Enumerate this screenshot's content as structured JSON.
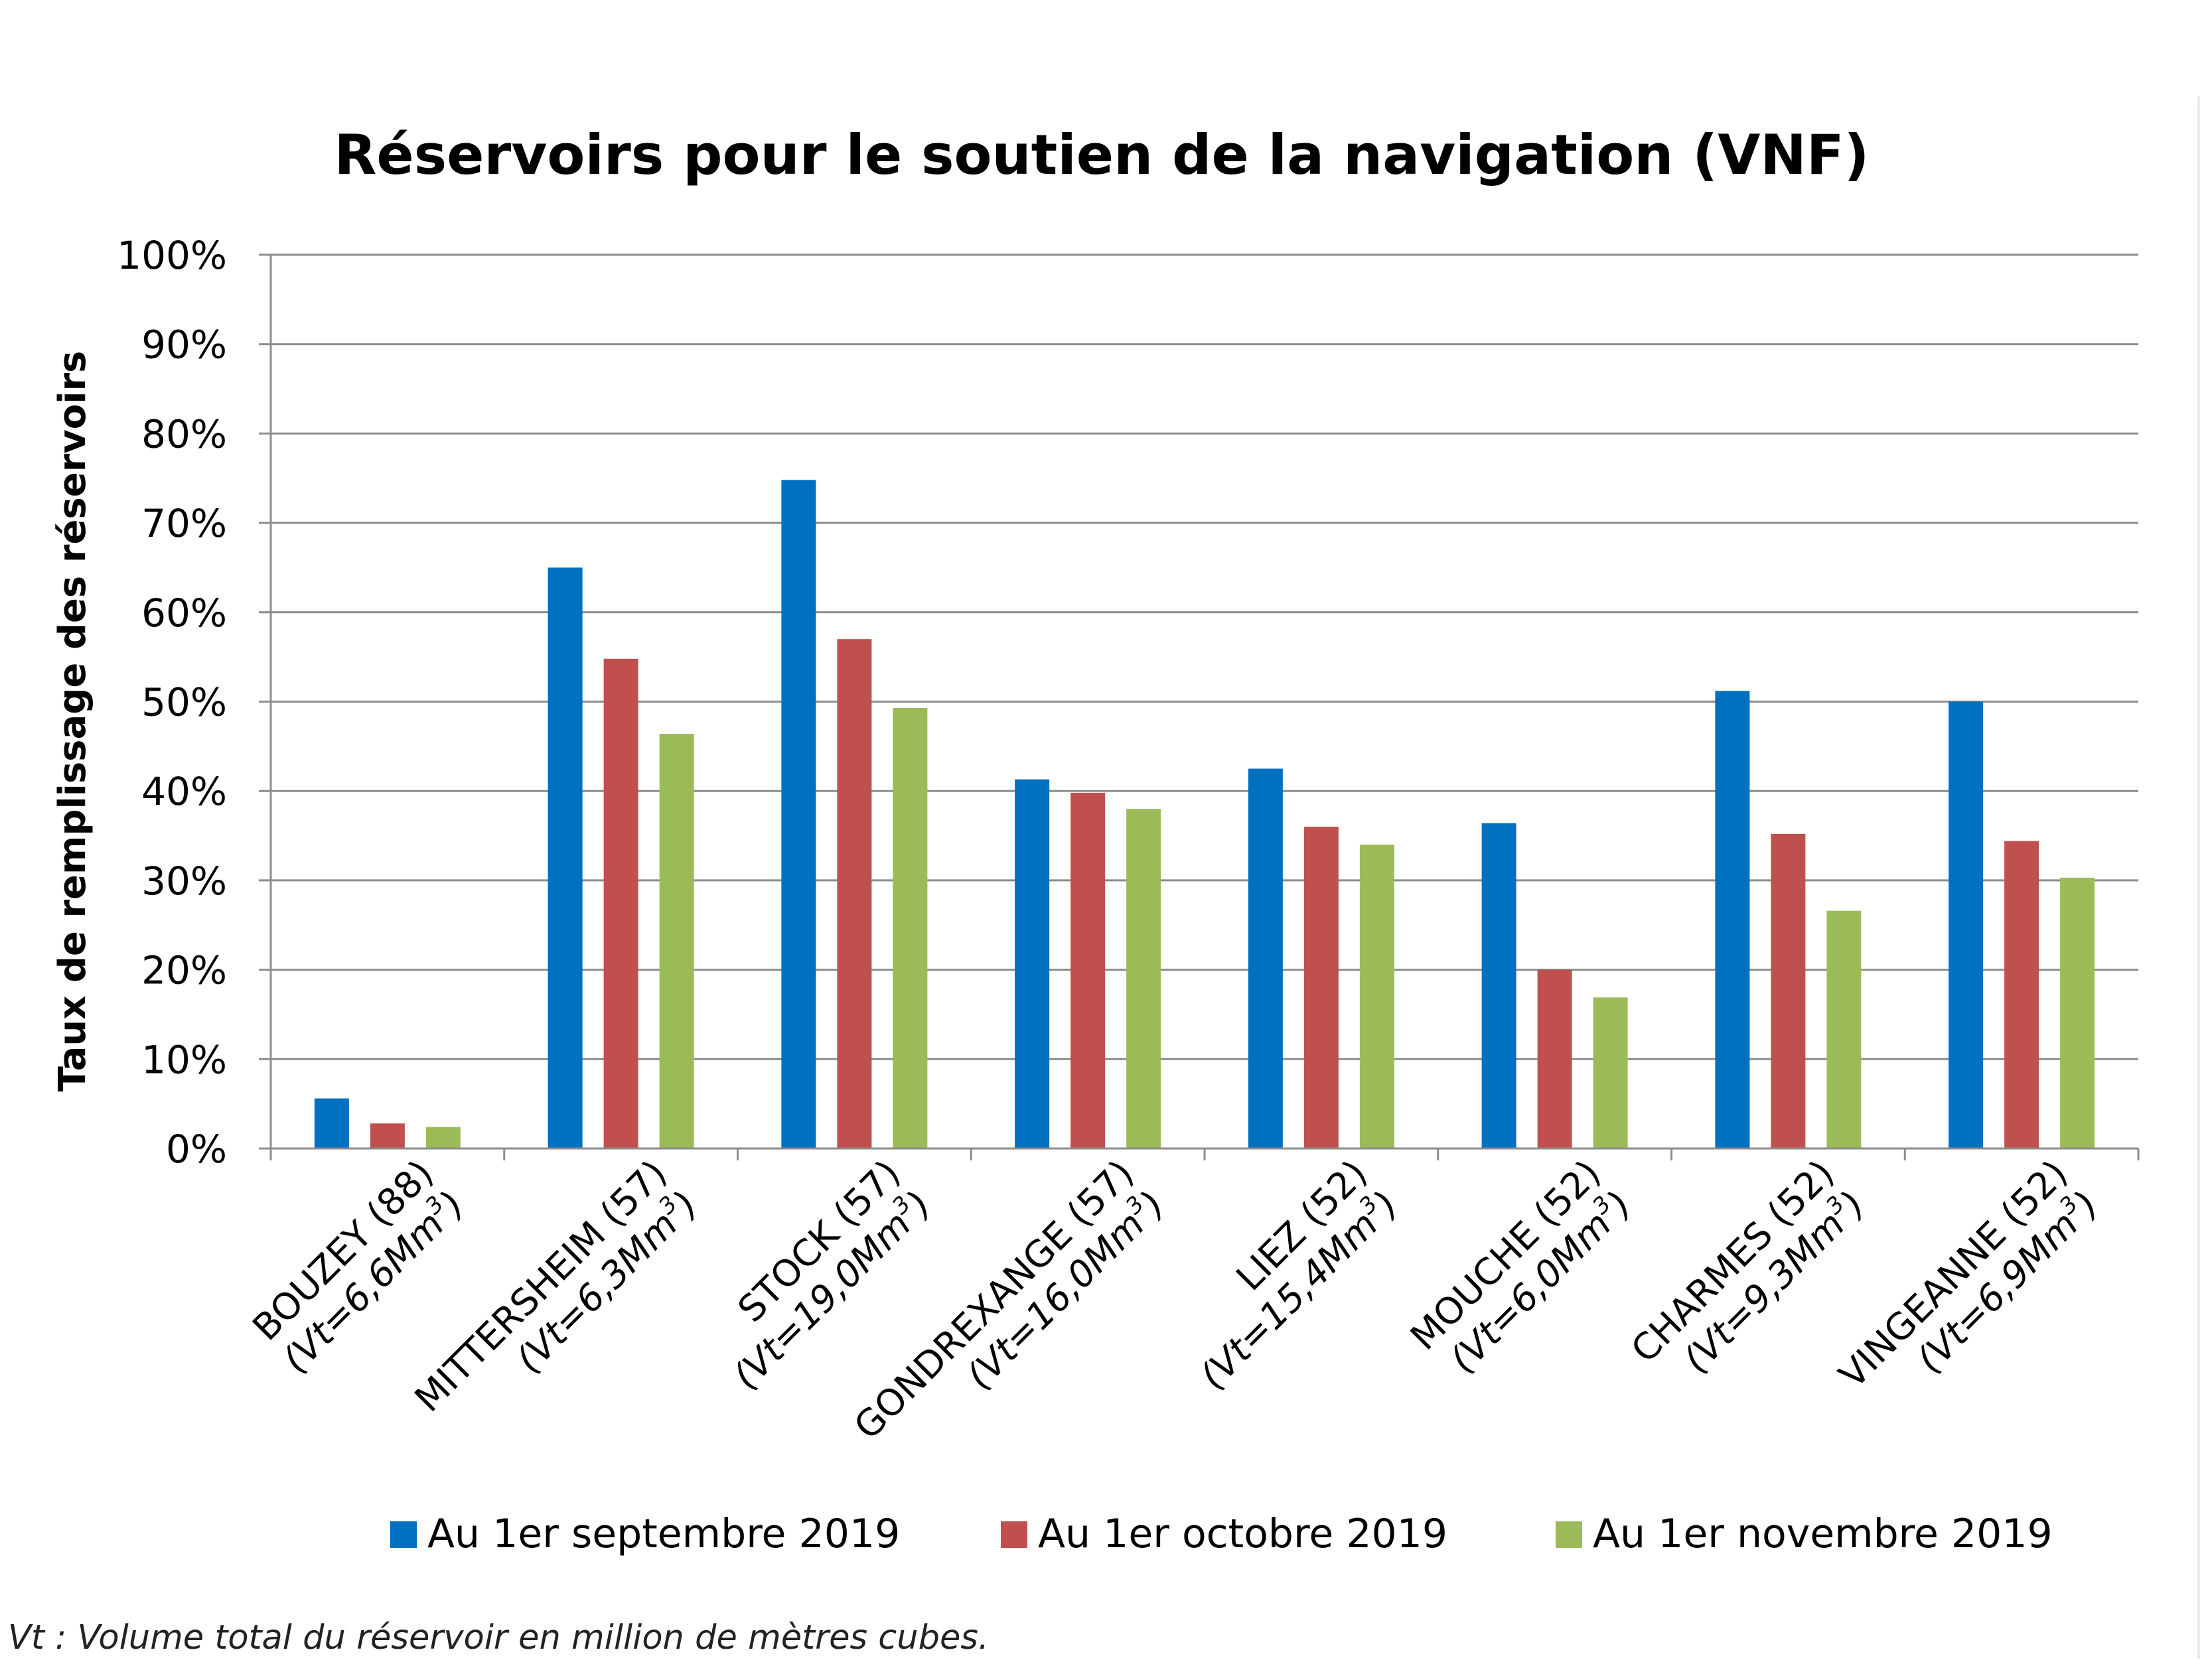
{
  "chart_data": {
    "type": "bar",
    "title": "Réservoirs pour le soutien de la navigation (VNF)",
    "ylabel": "Taux de remplissage des réservoirs",
    "xlabel": "",
    "ylim": [
      0,
      100
    ],
    "y_ticks": [
      "0%",
      "10%",
      "20%",
      "30%",
      "40%",
      "50%",
      "60%",
      "70%",
      "80%",
      "90%",
      "100%"
    ],
    "grid": true,
    "legend_position": "bottom",
    "categories": [
      {
        "name": "BOUZEY (88)",
        "sub_prefix": "(Vt=6,6Mm",
        "sup": "3",
        "sub_suffix": ")"
      },
      {
        "name": "MITTERSHEIM (57)",
        "sub_prefix": "(Vt=6,3Mm",
        "sup": "3",
        "sub_suffix": ")"
      },
      {
        "name": "STOCK (57)",
        "sub_prefix": "(Vt=19,0Mm",
        "sup": "3",
        "sub_suffix": ")"
      },
      {
        "name": "GONDREXANGE (57)",
        "sub_prefix": "(Vt=16,0Mm",
        "sup": "3",
        "sub_suffix": ")"
      },
      {
        "name": "LIEZ (52)",
        "sub_prefix": "(Vt=15,4Mm",
        "sup": "3",
        "sub_suffix": ")"
      },
      {
        "name": "MOUCHE (52)",
        "sub_prefix": "(Vt=6,0Mm",
        "sup": "3",
        "sub_suffix": ")"
      },
      {
        "name": "CHARMES (52)",
        "sub_prefix": "(Vt=9,3Mm",
        "sup": "3",
        "sub_suffix": ")"
      },
      {
        "name": "VINGEANNE (52)",
        "sub_prefix": "(Vt=6,9Mm",
        "sup": "3",
        "sub_suffix": ")"
      }
    ],
    "series": [
      {
        "name": "Au 1er septembre 2019",
        "color": "#0070C0",
        "values": [
          5.6,
          65.0,
          74.8,
          41.3,
          42.5,
          36.4,
          51.2,
          50.0
        ]
      },
      {
        "name": "Au 1er octobre 2019",
        "color": "#C0504D",
        "values": [
          2.8,
          54.8,
          57.0,
          39.8,
          36.0,
          20.0,
          35.2,
          34.4
        ]
      },
      {
        "name": "Au 1er novembre 2019",
        "color": "#9BBB59",
        "values": [
          2.4,
          46.4,
          49.3,
          38.0,
          34.0,
          16.9,
          26.6,
          30.3
        ]
      }
    ],
    "footnote": "Vt : Volume total du réservoir en million de mètres cubes."
  }
}
